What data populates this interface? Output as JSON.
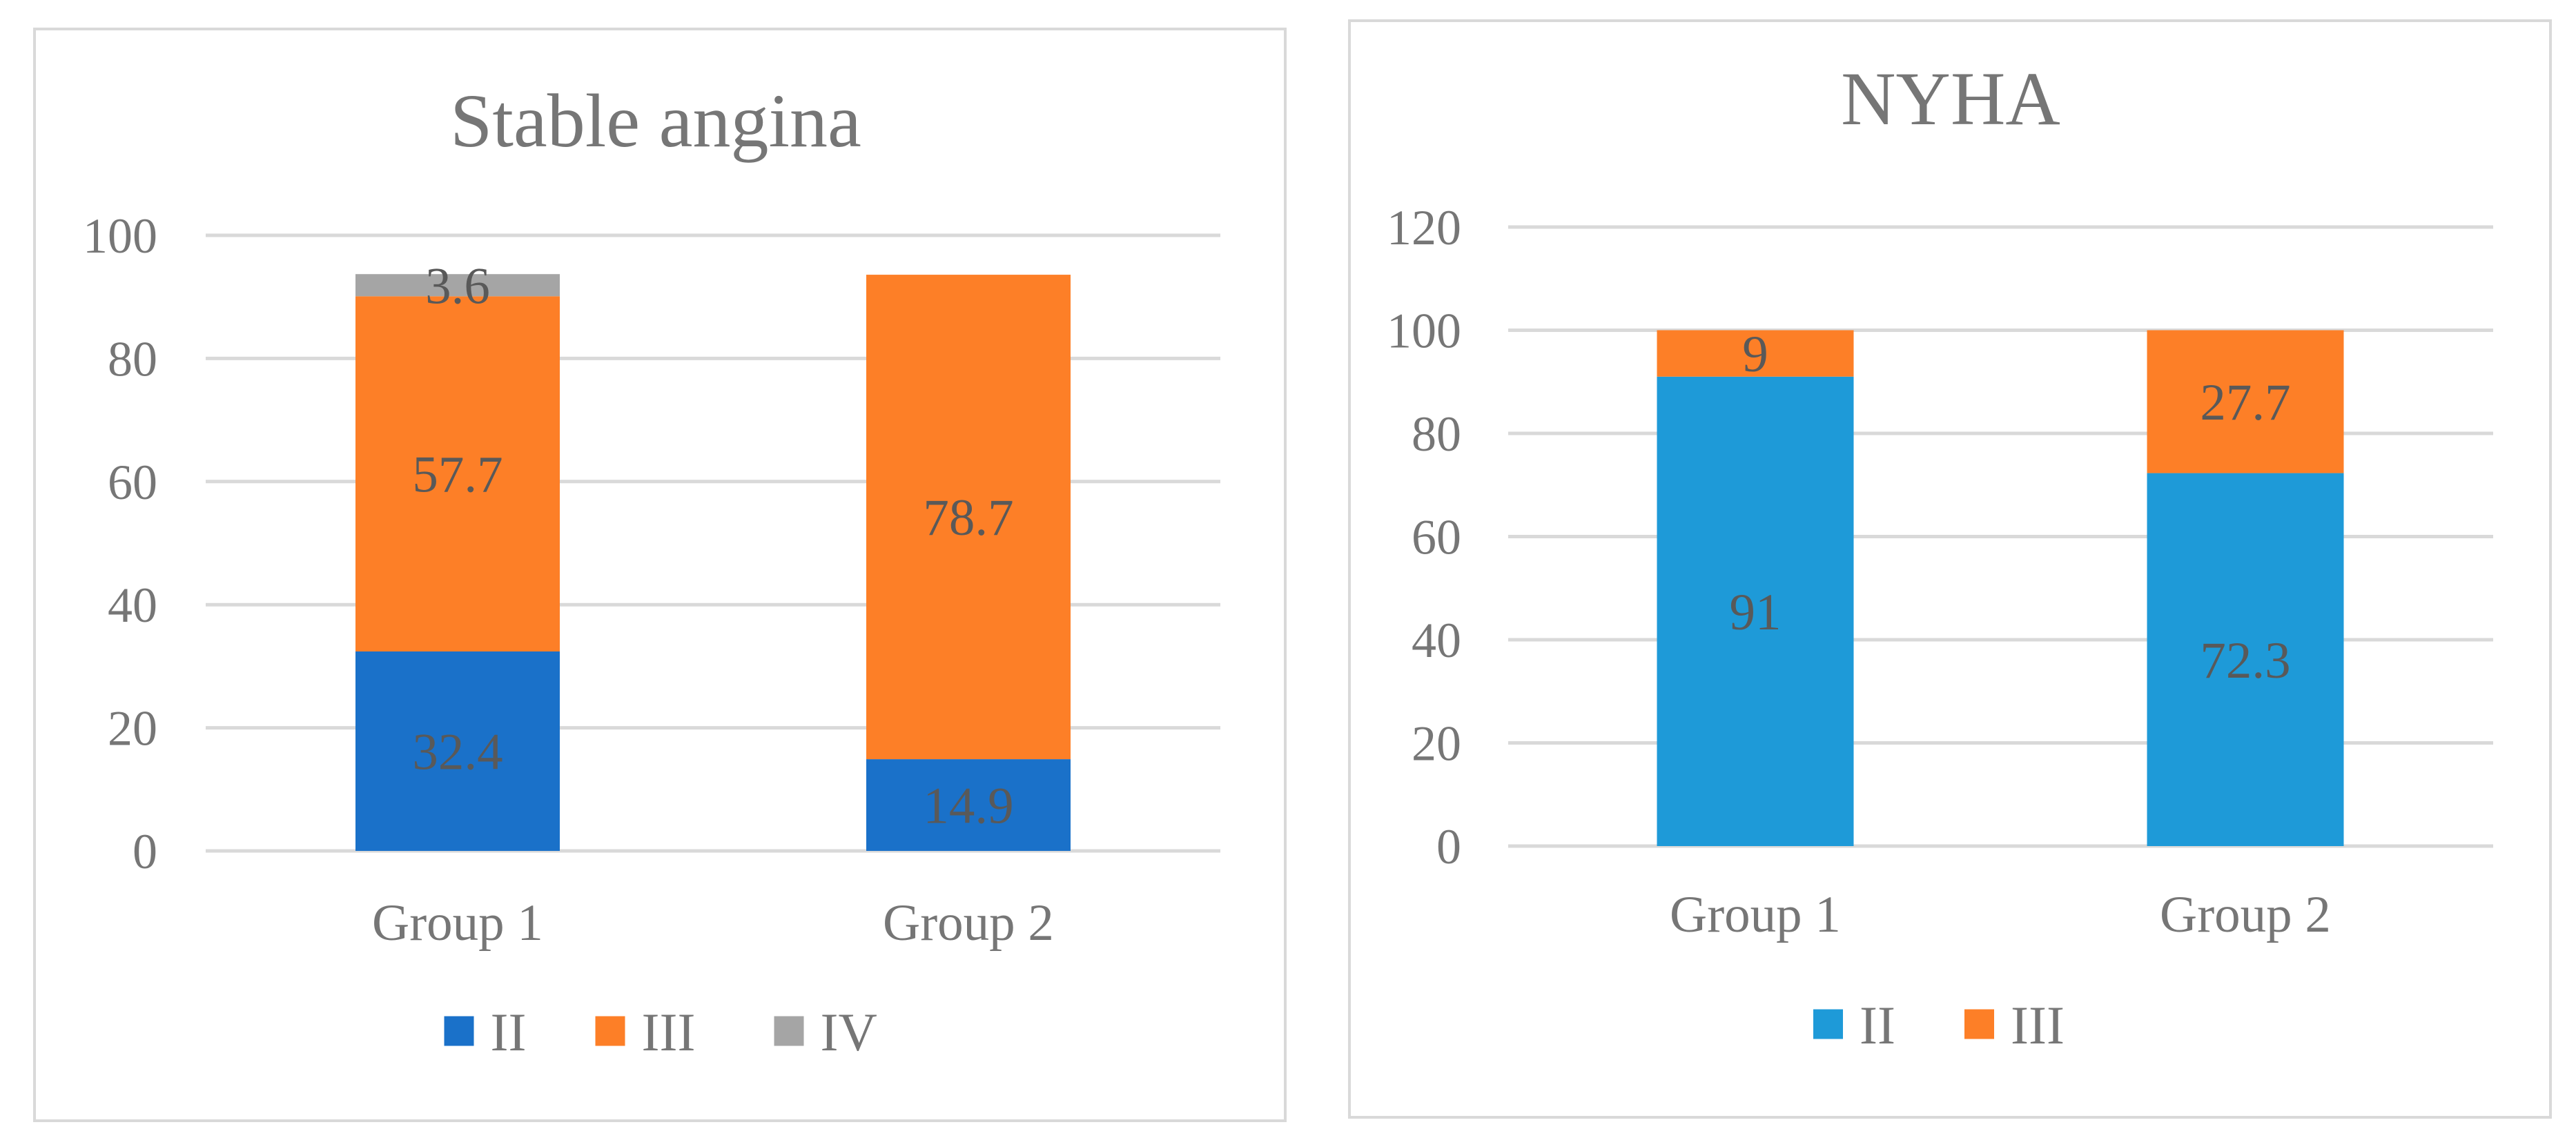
{
  "chart_data": [
    {
      "type": "bar",
      "stacked": true,
      "title": "Stable angina",
      "categories": [
        "Group 1",
        "Group 2"
      ],
      "ylim": [
        0,
        100
      ],
      "yticks": [
        0,
        20,
        40,
        60,
        80,
        100
      ],
      "grid": true,
      "legend_position": "bottom",
      "series": [
        {
          "name": "II",
          "values": [
            32.4,
            14.9
          ],
          "labels": [
            "32.4",
            "14.9"
          ],
          "color": "#1a71c9"
        },
        {
          "name": "III",
          "values": [
            57.7,
            78.7
          ],
          "labels": [
            "57.7",
            "78.7"
          ],
          "color": "#fd7f27"
        },
        {
          "name": "IV",
          "values": [
            3.6,
            0
          ],
          "labels": [
            "3.6",
            ""
          ],
          "color": "#a5a5a5"
        }
      ]
    },
    {
      "type": "bar",
      "stacked": true,
      "title": "NYHA",
      "categories": [
        "Group 1",
        "Group 2"
      ],
      "ylim": [
        0,
        120
      ],
      "yticks": [
        0,
        20,
        40,
        60,
        80,
        100,
        120
      ],
      "grid": true,
      "legend_position": "bottom",
      "series": [
        {
          "name": "II",
          "values": [
            91,
            72.3
          ],
          "labels": [
            "91",
            "72.3"
          ],
          "color": "#1e9ad8"
        },
        {
          "name": "III",
          "values": [
            9,
            27.7
          ],
          "labels": [
            "9",
            "27.7"
          ],
          "color": "#fd7f27"
        }
      ]
    }
  ]
}
